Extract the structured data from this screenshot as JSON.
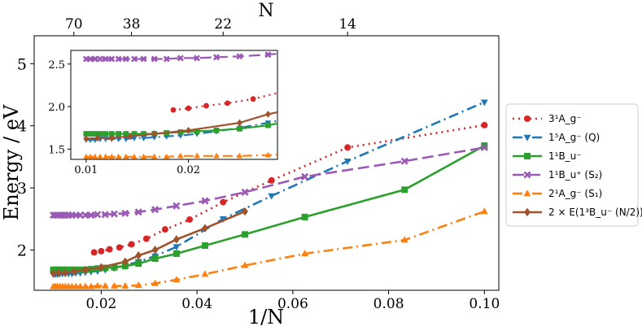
{
  "chart_data": {
    "type": "line",
    "main": {
      "xlabel": "1/N",
      "ylabel": "Energy / eV",
      "xlim": [
        0.006,
        0.103
      ],
      "ylim": [
        1.35,
        5.45
      ],
      "xticks": [
        0.02,
        0.04,
        0.06,
        0.08,
        0.1
      ],
      "xtick_labels": [
        "0.02",
        "0.04",
        "0.06",
        "0.08",
        "0.10"
      ],
      "yticks": [
        2,
        3,
        4,
        5
      ],
      "ytick_labels": [
        "2",
        "3",
        "4",
        "5"
      ],
      "top_axis": {
        "label": "N",
        "ticks": [
          70,
          38,
          22,
          14
        ],
        "tick_labels": [
          "70",
          "38",
          "22",
          "14"
        ]
      }
    },
    "inset": {
      "xlim": [
        0.0085,
        0.0287
      ],
      "ylim": [
        1.38,
        2.66
      ],
      "xticks": [
        0.01,
        0.02
      ],
      "xtick_labels": [
        "0.01",
        "0.02"
      ],
      "yticks": [
        1.5,
        2.0,
        2.5
      ],
      "ytick_labels": [
        "1.5",
        "2.0",
        "2.5"
      ]
    },
    "legend": {
      "placement": "right",
      "entries": [
        "3¹A_g⁻",
        "1⁵A_g⁻ (Q)",
        "1¹B_u⁻",
        "1¹B_u⁺ (S₂)",
        "2¹A_g⁻ (S₁)",
        "2 × E(1³B_u⁻ (N/2))"
      ]
    },
    "series": [
      {
        "name": "3¹A_g⁻",
        "color": "#d62728",
        "dash": "2,5",
        "marker": "circle",
        "x": [
          0.01852,
          0.02,
          0.02174,
          0.02381,
          0.02632,
          0.02941,
          0.03333,
          0.03846,
          0.04545,
          0.05556,
          0.07143,
          0.1
        ],
        "y": [
          1.96,
          1.98,
          2.01,
          2.04,
          2.09,
          2.18,
          2.33,
          2.49,
          2.77,
          3.12,
          3.65,
          4.01
        ]
      },
      {
        "name": "1⁵A_g⁻ (Q)",
        "color": "#1f77b4",
        "dash": "12,5,2,5",
        "marker": "triangle-down",
        "x": [
          0.01,
          0.01042,
          0.01087,
          0.01136,
          0.0119,
          0.0125,
          0.01316,
          0.01389,
          0.01471,
          0.01562,
          0.01667,
          0.01786,
          0.01923,
          0.02083,
          0.02273,
          0.025,
          0.02778,
          0.03125,
          0.03571,
          0.04545,
          0.05556,
          0.07143,
          0.1
        ],
        "y": [
          1.61,
          1.61,
          1.61,
          1.62,
          1.62,
          1.62,
          1.62,
          1.62,
          1.63,
          1.63,
          1.64,
          1.65,
          1.66,
          1.68,
          1.71,
          1.75,
          1.81,
          1.9,
          2.05,
          2.5,
          2.87,
          3.43,
          4.38
        ]
      },
      {
        "name": "1¹B_u⁻",
        "color": "#2ca02c",
        "dash": "",
        "marker": "square",
        "x": [
          0.01,
          0.01042,
          0.01087,
          0.01136,
          0.0119,
          0.0125,
          0.01316,
          0.01389,
          0.01471,
          0.01562,
          0.01667,
          0.01786,
          0.01923,
          0.02083,
          0.02273,
          0.025,
          0.02778,
          0.03125,
          0.03571,
          0.04167,
          0.05,
          0.0625,
          0.08333,
          0.1
        ],
        "y": [
          1.68,
          1.68,
          1.68,
          1.68,
          1.68,
          1.68,
          1.68,
          1.68,
          1.68,
          1.68,
          1.68,
          1.69,
          1.7,
          1.71,
          1.72,
          1.74,
          1.78,
          1.86,
          1.94,
          2.07,
          2.25,
          2.53,
          2.97,
          3.68
        ]
      },
      {
        "name": "1¹B_u⁺ (S₂)",
        "color": "#9b59b6",
        "dash": "14,6",
        "marker": "x",
        "x": [
          0.01,
          0.01042,
          0.01087,
          0.01136,
          0.0119,
          0.0125,
          0.01316,
          0.01389,
          0.01471,
          0.01562,
          0.01667,
          0.01786,
          0.01923,
          0.02083,
          0.02273,
          0.025,
          0.02778,
          0.03125,
          0.03571,
          0.04167,
          0.05,
          0.0625,
          0.08333,
          0.1
        ],
        "y": [
          2.56,
          2.56,
          2.56,
          2.56,
          2.56,
          2.56,
          2.56,
          2.56,
          2.56,
          2.56,
          2.56,
          2.56,
          2.57,
          2.57,
          2.58,
          2.59,
          2.61,
          2.65,
          2.71,
          2.79,
          2.93,
          3.18,
          3.43,
          3.65
        ]
      },
      {
        "name": "2¹A_g⁻ (S₁)",
        "color": "#ff7f0e",
        "dash": "12,5,2,5",
        "marker": "triangle-up",
        "x": [
          0.01,
          0.01042,
          0.01087,
          0.01136,
          0.0119,
          0.0125,
          0.01316,
          0.01389,
          0.01471,
          0.01562,
          0.01667,
          0.01786,
          0.01923,
          0.02083,
          0.02273,
          0.025,
          0.02778,
          0.03125,
          0.03571,
          0.04167,
          0.05,
          0.0625,
          0.08333,
          0.1
        ],
        "y": [
          1.41,
          1.41,
          1.41,
          1.41,
          1.41,
          1.41,
          1.41,
          1.41,
          1.41,
          1.41,
          1.41,
          1.41,
          1.42,
          1.42,
          1.42,
          1.42,
          1.43,
          1.46,
          1.52,
          1.61,
          1.75,
          1.94,
          2.16,
          2.62
        ]
      },
      {
        "name": "2 × E(1³B_u⁻ (N/2))",
        "color": "#a0522d",
        "dash": "",
        "marker": "diamond",
        "x": [
          0.01,
          0.01111,
          0.0125,
          0.01429,
          0.01667,
          0.02,
          0.025,
          0.02778,
          0.03125,
          0.03571,
          0.04167,
          0.05
        ],
        "y": [
          1.62,
          1.63,
          1.63,
          1.65,
          1.68,
          1.72,
          1.81,
          1.91,
          2.0,
          2.17,
          2.35,
          2.62
        ]
      }
    ]
  }
}
